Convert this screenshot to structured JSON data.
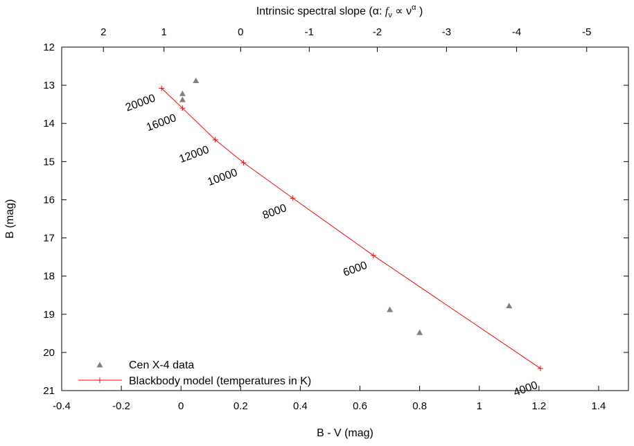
{
  "chart_data": {
    "type": "scatter",
    "xlabel": "B - V (mag)",
    "ylabel": "B (mag)",
    "top_axis": {
      "label_prefix": "Intrinsic spectral slope (",
      "label_alpha": "α",
      "label_sep": ": ",
      "label_f": "f",
      "label_nu": "ν",
      "label_prop": " ∝ ",
      "label_sup": "α",
      "label_suffix": " )",
      "ticks": [
        {
          "label": "2",
          "bv": -0.26
        },
        {
          "label": "1",
          "bv": -0.057
        },
        {
          "label": "0",
          "bv": 0.2
        },
        {
          "label": "-1",
          "bv": 0.43
        },
        {
          "label": "-2",
          "bv": 0.658
        },
        {
          "label": "-3",
          "bv": 0.89
        },
        {
          "label": "-4",
          "bv": 1.125
        },
        {
          "label": "-5",
          "bv": 1.36
        }
      ]
    },
    "xlim": [
      -0.4,
      1.5
    ],
    "ylim": [
      21,
      12
    ],
    "x_ticks": [
      {
        "value": -0.4,
        "label": "-0.4"
      },
      {
        "value": -0.2,
        "label": "-0.2"
      },
      {
        "value": 0,
        "label": "0"
      },
      {
        "value": 0.2,
        "label": "0.2"
      },
      {
        "value": 0.4,
        "label": "0.4"
      },
      {
        "value": 0.6,
        "label": "0.6"
      },
      {
        "value": 0.8,
        "label": "0.8"
      },
      {
        "value": 1.0,
        "label": "1"
      },
      {
        "value": 1.2,
        "label": "1.2"
      },
      {
        "value": 1.4,
        "label": "1.4"
      }
    ],
    "y_ticks": [
      {
        "value": 12,
        "label": "12"
      },
      {
        "value": 13,
        "label": "13"
      },
      {
        "value": 14,
        "label": "14"
      },
      {
        "value": 15,
        "label": "15"
      },
      {
        "value": 16,
        "label": "16"
      },
      {
        "value": 17,
        "label": "17"
      },
      {
        "value": 18,
        "label": "18"
      },
      {
        "value": 19,
        "label": "19"
      },
      {
        "value": 20,
        "label": "20"
      },
      {
        "value": 21,
        "label": "21"
      }
    ],
    "series": [
      {
        "name": "Cen X-4 data",
        "marker": "triangle",
        "color": "#808080",
        "points": [
          {
            "x": 0.05,
            "y": 12.88
          },
          {
            "x": 0.005,
            "y": 13.22
          },
          {
            "x": 0.005,
            "y": 13.38
          },
          {
            "x": 0.7,
            "y": 18.88
          },
          {
            "x": 0.8,
            "y": 19.48
          },
          {
            "x": 1.1,
            "y": 18.78
          }
        ]
      },
      {
        "name": "Blackbody model (temperatures in K)",
        "marker": "plus",
        "color": "#ff0000",
        "points": [
          {
            "x": -0.065,
            "y": 13.08,
            "label": "20000"
          },
          {
            "x": 0.005,
            "y": 13.6,
            "label": "16000"
          },
          {
            "x": 0.115,
            "y": 14.43,
            "label": "12000"
          },
          {
            "x": 0.21,
            "y": 15.03,
            "label": "10000"
          },
          {
            "x": 0.375,
            "y": 15.96,
            "label": "8000"
          },
          {
            "x": 0.645,
            "y": 17.46,
            "label": "6000"
          },
          {
            "x": 1.205,
            "y": 20.42,
            "label": "4000"
          }
        ]
      }
    ],
    "legend_position": "bottom-left",
    "grid": false
  },
  "colors": {
    "model": "#ff0000",
    "data": "#808080",
    "axis": "#000000"
  }
}
